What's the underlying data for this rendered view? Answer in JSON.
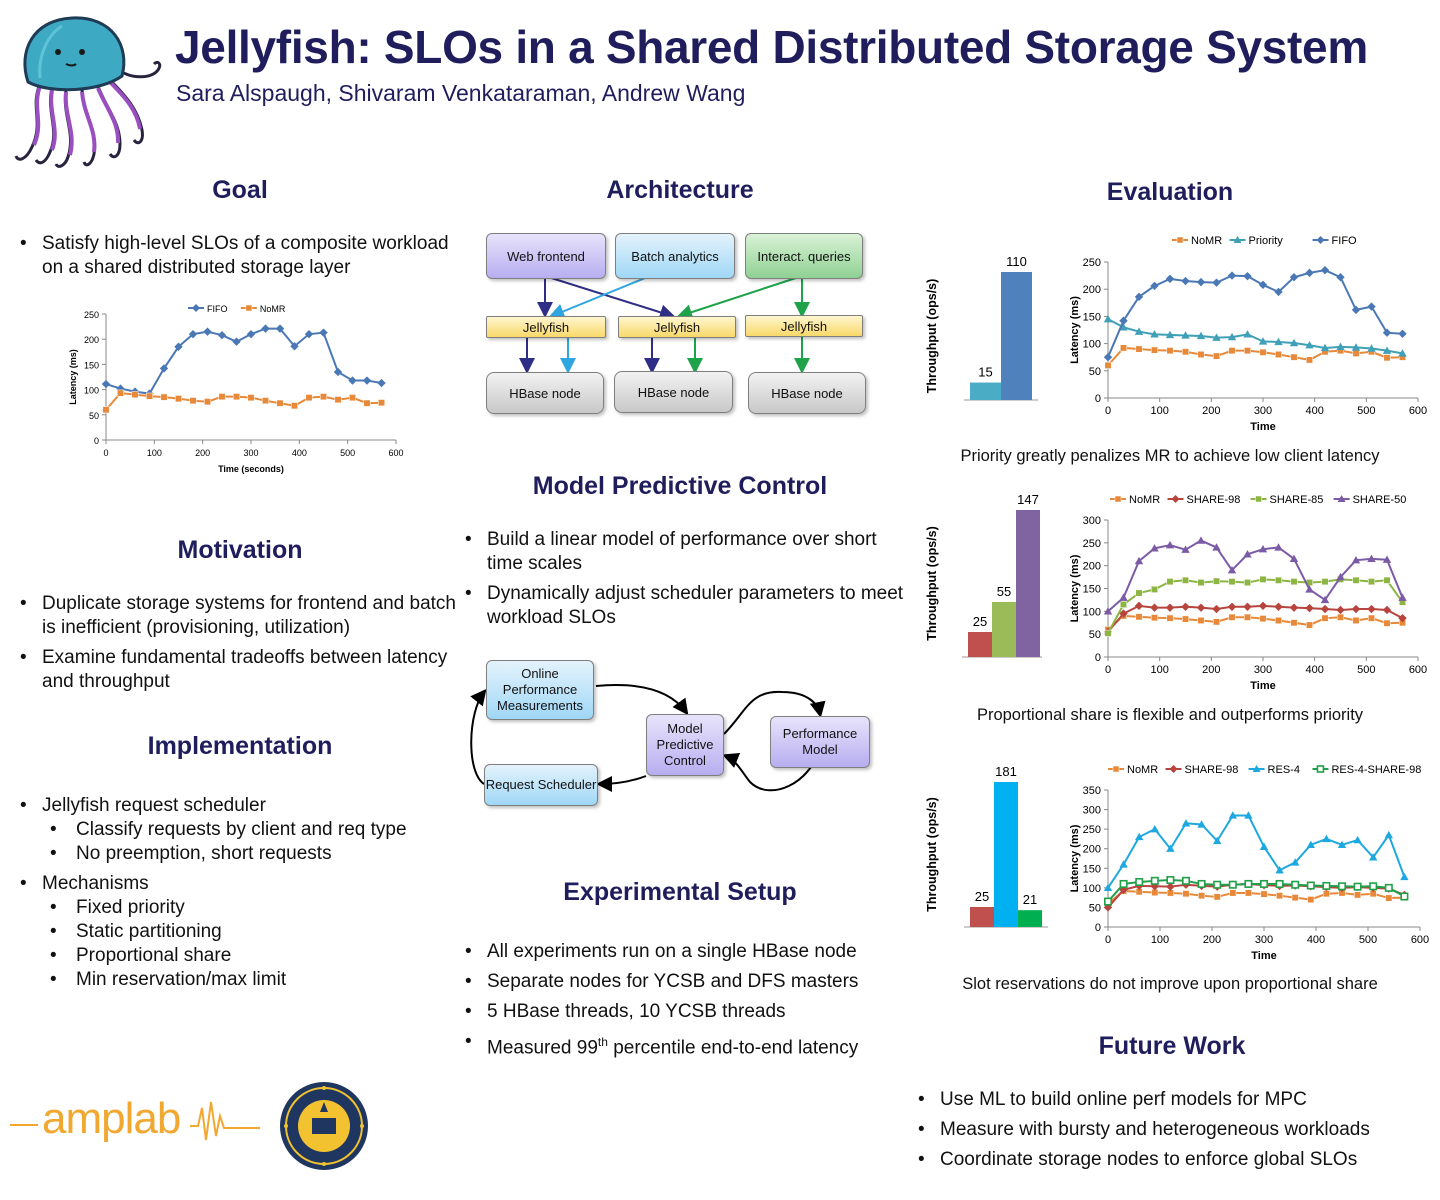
{
  "header": {
    "title": "Jellyfish: SLOs in a Shared Distributed Storage System",
    "authors": "Sara Alspaugh, Shivaram Venkataraman, Andrew Wang"
  },
  "goal": {
    "heading": "Goal",
    "bullets": [
      "Satisfy high-level SLOs of a composite workload on a shared distributed storage layer"
    ]
  },
  "motivation": {
    "heading": "Motivation",
    "bullets": [
      "Duplicate storage systems for frontend and batch is inefficient (provisioning, utilization)",
      "Examine fundamental tradeoffs between latency and throughput"
    ]
  },
  "implementation": {
    "heading": "Implementation",
    "item1": "Jellyfish request scheduler",
    "item1_sub": [
      "Classify requests by client and req type",
      "No preemption, short requests"
    ],
    "item2": "Mechanisms",
    "item2_sub": [
      "Fixed priority",
      "Static partitioning",
      "Proportional share",
      "Min reservation/max limit"
    ]
  },
  "architecture": {
    "heading": "Architecture",
    "clients": [
      "Web frontend",
      "Batch analytics",
      "Interact. queries"
    ],
    "schedulers": [
      "Jellyfish",
      "Jellyfish",
      "Jellyfish"
    ],
    "nodes": [
      "HBase node",
      "HBase node",
      "HBase node"
    ]
  },
  "mpc": {
    "heading": "Model Predictive Control",
    "bullets": [
      "Build a linear model of performance over short time scales",
      "Dynamically adjust scheduler parameters to meet workload SLOs"
    ],
    "diagram": {
      "measurements": "Online Performance Measurements",
      "control": "Model Predictive Control",
      "model": "Performance Model",
      "scheduler": "Request Scheduler"
    }
  },
  "setup": {
    "heading": "Experimental Setup",
    "bullets": [
      "All experiments run on a single HBase node",
      "Separate nodes for YCSB and DFS masters",
      "5 HBase threads, 10 YCSB threads"
    ],
    "last_pre": "Measured 99",
    "last_sup": "th",
    "last_post": " percentile end-to-end latency"
  },
  "evaluation": {
    "heading": "Evaluation",
    "captions": [
      "Priority greatly penalizes MR to achieve low client latency",
      "Proportional share is flexible and outperforms priority",
      "Slot reservations do not improve upon proportional share"
    ]
  },
  "future": {
    "heading": "Future Work",
    "bullets": [
      "Use ML to build online perf models for MPC",
      "Measure with bursty and heterogeneous workloads",
      "Coordinate storage nodes to enforce global SLOs"
    ]
  },
  "logos": {
    "amplab": "amplab"
  },
  "chart_data": [
    {
      "id": "goal",
      "type": "line",
      "xlabel": "Time (seconds)",
      "ylabel": "Latency (ms)",
      "xlim": [
        0,
        600
      ],
      "ylim": [
        0,
        250
      ],
      "xticks": [
        0,
        100,
        200,
        300,
        400,
        500,
        600
      ],
      "yticks": [
        0,
        50,
        100,
        150,
        200,
        250
      ],
      "legend": "top",
      "x": [
        0,
        30,
        60,
        90,
        120,
        150,
        180,
        210,
        240,
        270,
        300,
        330,
        360,
        390,
        420,
        450,
        480,
        510,
        540,
        570
      ],
      "series": [
        {
          "name": "FIFO",
          "color": "#4a78b5",
          "marker": "diamond",
          "values": [
            111,
            102,
            96,
            92,
            142,
            185,
            210,
            215,
            208,
            195,
            210,
            221,
            221,
            186,
            210,
            213,
            135,
            118,
            118,
            113
          ]
        },
        {
          "name": "NoMR",
          "color": "#e8893a",
          "marker": "square",
          "values": [
            60,
            93,
            90,
            87,
            85,
            82,
            78,
            76,
            86,
            86,
            84,
            78,
            73,
            68,
            84,
            86,
            80,
            84,
            73,
            74
          ]
        }
      ]
    },
    {
      "id": "eval1",
      "type": "line",
      "xlabel": "Time",
      "ylabel": "Latency (ms)",
      "xlim": [
        0,
        600
      ],
      "ylim": [
        0,
        250
      ],
      "xticks": [
        0,
        100,
        200,
        300,
        400,
        500,
        600
      ],
      "yticks": [
        0,
        50,
        100,
        150,
        200,
        250
      ],
      "legend": "top",
      "x": [
        0,
        30,
        60,
        90,
        120,
        150,
        180,
        210,
        240,
        270,
        300,
        330,
        360,
        390,
        420,
        450,
        480,
        510,
        540,
        570
      ],
      "series": [
        {
          "name": "NoMR",
          "color": "#e8893a",
          "marker": "square",
          "values": [
            60,
            92,
            90,
            88,
            87,
            85,
            80,
            77,
            87,
            87,
            84,
            80,
            75,
            70,
            85,
            87,
            82,
            85,
            74,
            75
          ]
        },
        {
          "name": "Priority",
          "color": "#3fa0b8",
          "marker": "triangle",
          "values": [
            145,
            130,
            122,
            117,
            116,
            115,
            114,
            111,
            112,
            117,
            104,
            103,
            101,
            97,
            92,
            94,
            93,
            91,
            87,
            82
          ]
        },
        {
          "name": "FIFO",
          "color": "#4a78b5",
          "marker": "diamond",
          "values": [
            75,
            142,
            186,
            206,
            219,
            215,
            213,
            212,
            225,
            224,
            208,
            195,
            222,
            230,
            235,
            222,
            162,
            168,
            120,
            118
          ]
        }
      ]
    },
    {
      "id": "eval2",
      "type": "line",
      "xlabel": "Time",
      "ylabel": "Latency (ms)",
      "xlim": [
        0,
        600
      ],
      "ylim": [
        0,
        300
      ],
      "xticks": [
        0,
        100,
        200,
        300,
        400,
        500,
        600
      ],
      "yticks": [
        0,
        50,
        100,
        150,
        200,
        250,
        300
      ],
      "legend": "top",
      "x": [
        0,
        30,
        60,
        90,
        120,
        150,
        180,
        210,
        240,
        270,
        300,
        330,
        360,
        390,
        420,
        450,
        480,
        510,
        540,
        570
      ],
      "series": [
        {
          "name": "NoMR",
          "color": "#e8893a",
          "marker": "square",
          "values": [
            60,
            90,
            88,
            86,
            85,
            83,
            80,
            77,
            87,
            87,
            84,
            80,
            75,
            70,
            85,
            87,
            80,
            85,
            74,
            75
          ]
        },
        {
          "name": "SHARE-98",
          "color": "#b8443e",
          "marker": "diamond",
          "values": [
            55,
            95,
            112,
            108,
            108,
            110,
            108,
            105,
            110,
            110,
            112,
            110,
            108,
            107,
            105,
            103,
            105,
            105,
            103,
            85
          ]
        },
        {
          "name": "SHARE-85",
          "color": "#8cb543",
          "marker": "square",
          "values": [
            52,
            115,
            140,
            148,
            165,
            168,
            163,
            166,
            165,
            163,
            170,
            168,
            165,
            163,
            165,
            170,
            168,
            165,
            168,
            120
          ]
        },
        {
          "name": "SHARE-50",
          "color": "#7b5aa6",
          "marker": "triangle",
          "values": [
            100,
            130,
            210,
            238,
            245,
            235,
            255,
            240,
            190,
            225,
            236,
            240,
            215,
            148,
            125,
            175,
            212,
            215,
            213,
            130
          ]
        }
      ]
    },
    {
      "id": "eval3",
      "type": "line",
      "xlabel": "Time",
      "ylabel": "Latency (ms)",
      "xlim": [
        0,
        600
      ],
      "ylim": [
        0,
        350
      ],
      "xticks": [
        0,
        100,
        200,
        300,
        400,
        500,
        600
      ],
      "yticks": [
        0,
        50,
        100,
        150,
        200,
        250,
        300,
        350
      ],
      "legend": "top",
      "x": [
        0,
        30,
        60,
        90,
        120,
        150,
        180,
        210,
        240,
        270,
        300,
        330,
        360,
        390,
        420,
        450,
        480,
        510,
        540,
        570
      ],
      "series": [
        {
          "name": "NoMR",
          "color": "#e8893a",
          "marker": "square",
          "values": [
            60,
            92,
            90,
            88,
            87,
            85,
            80,
            77,
            87,
            87,
            84,
            80,
            75,
            70,
            85,
            87,
            82,
            85,
            74,
            75
          ]
        },
        {
          "name": "SHARE-98",
          "color": "#b8443e",
          "marker": "diamond",
          "values": [
            50,
            95,
            105,
            104,
            103,
            108,
            105,
            103,
            108,
            110,
            107,
            105,
            106,
            104,
            102,
            100,
            102,
            100,
            98,
            82
          ]
        },
        {
          "name": "RES-4",
          "color": "#1ea8e0",
          "marker": "triangle",
          "values": [
            100,
            160,
            230,
            250,
            200,
            265,
            262,
            220,
            285,
            285,
            205,
            145,
            165,
            210,
            225,
            210,
            222,
            178,
            235,
            128
          ]
        },
        {
          "name": "RES-4-SHARE-98",
          "color": "#20a048",
          "marker": "square-open",
          "values": [
            65,
            110,
            115,
            118,
            120,
            118,
            110,
            108,
            108,
            110,
            110,
            110,
            108,
            106,
            105,
            104,
            103,
            104,
            100,
            78
          ]
        }
      ]
    },
    {
      "id": "bar1",
      "type": "bar",
      "ylabel": "Throughput (ops/s)",
      "ymax": 110,
      "values": [
        15,
        110
      ],
      "colors": [
        "#4bacc6",
        "#4f81bd"
      ]
    },
    {
      "id": "bar2",
      "type": "bar",
      "ylabel": "Throughput (ops/s)",
      "ymax": 147,
      "values": [
        25,
        55,
        147
      ],
      "colors": [
        "#c0504d",
        "#9bbb59",
        "#8064a2"
      ]
    },
    {
      "id": "bar3",
      "type": "bar",
      "ylabel": "Throughput (ops/s)",
      "ymax": 181,
      "values": [
        25,
        181,
        21
      ],
      "colors": [
        "#c0504d",
        "#00b0f0",
        "#00b050"
      ]
    }
  ]
}
